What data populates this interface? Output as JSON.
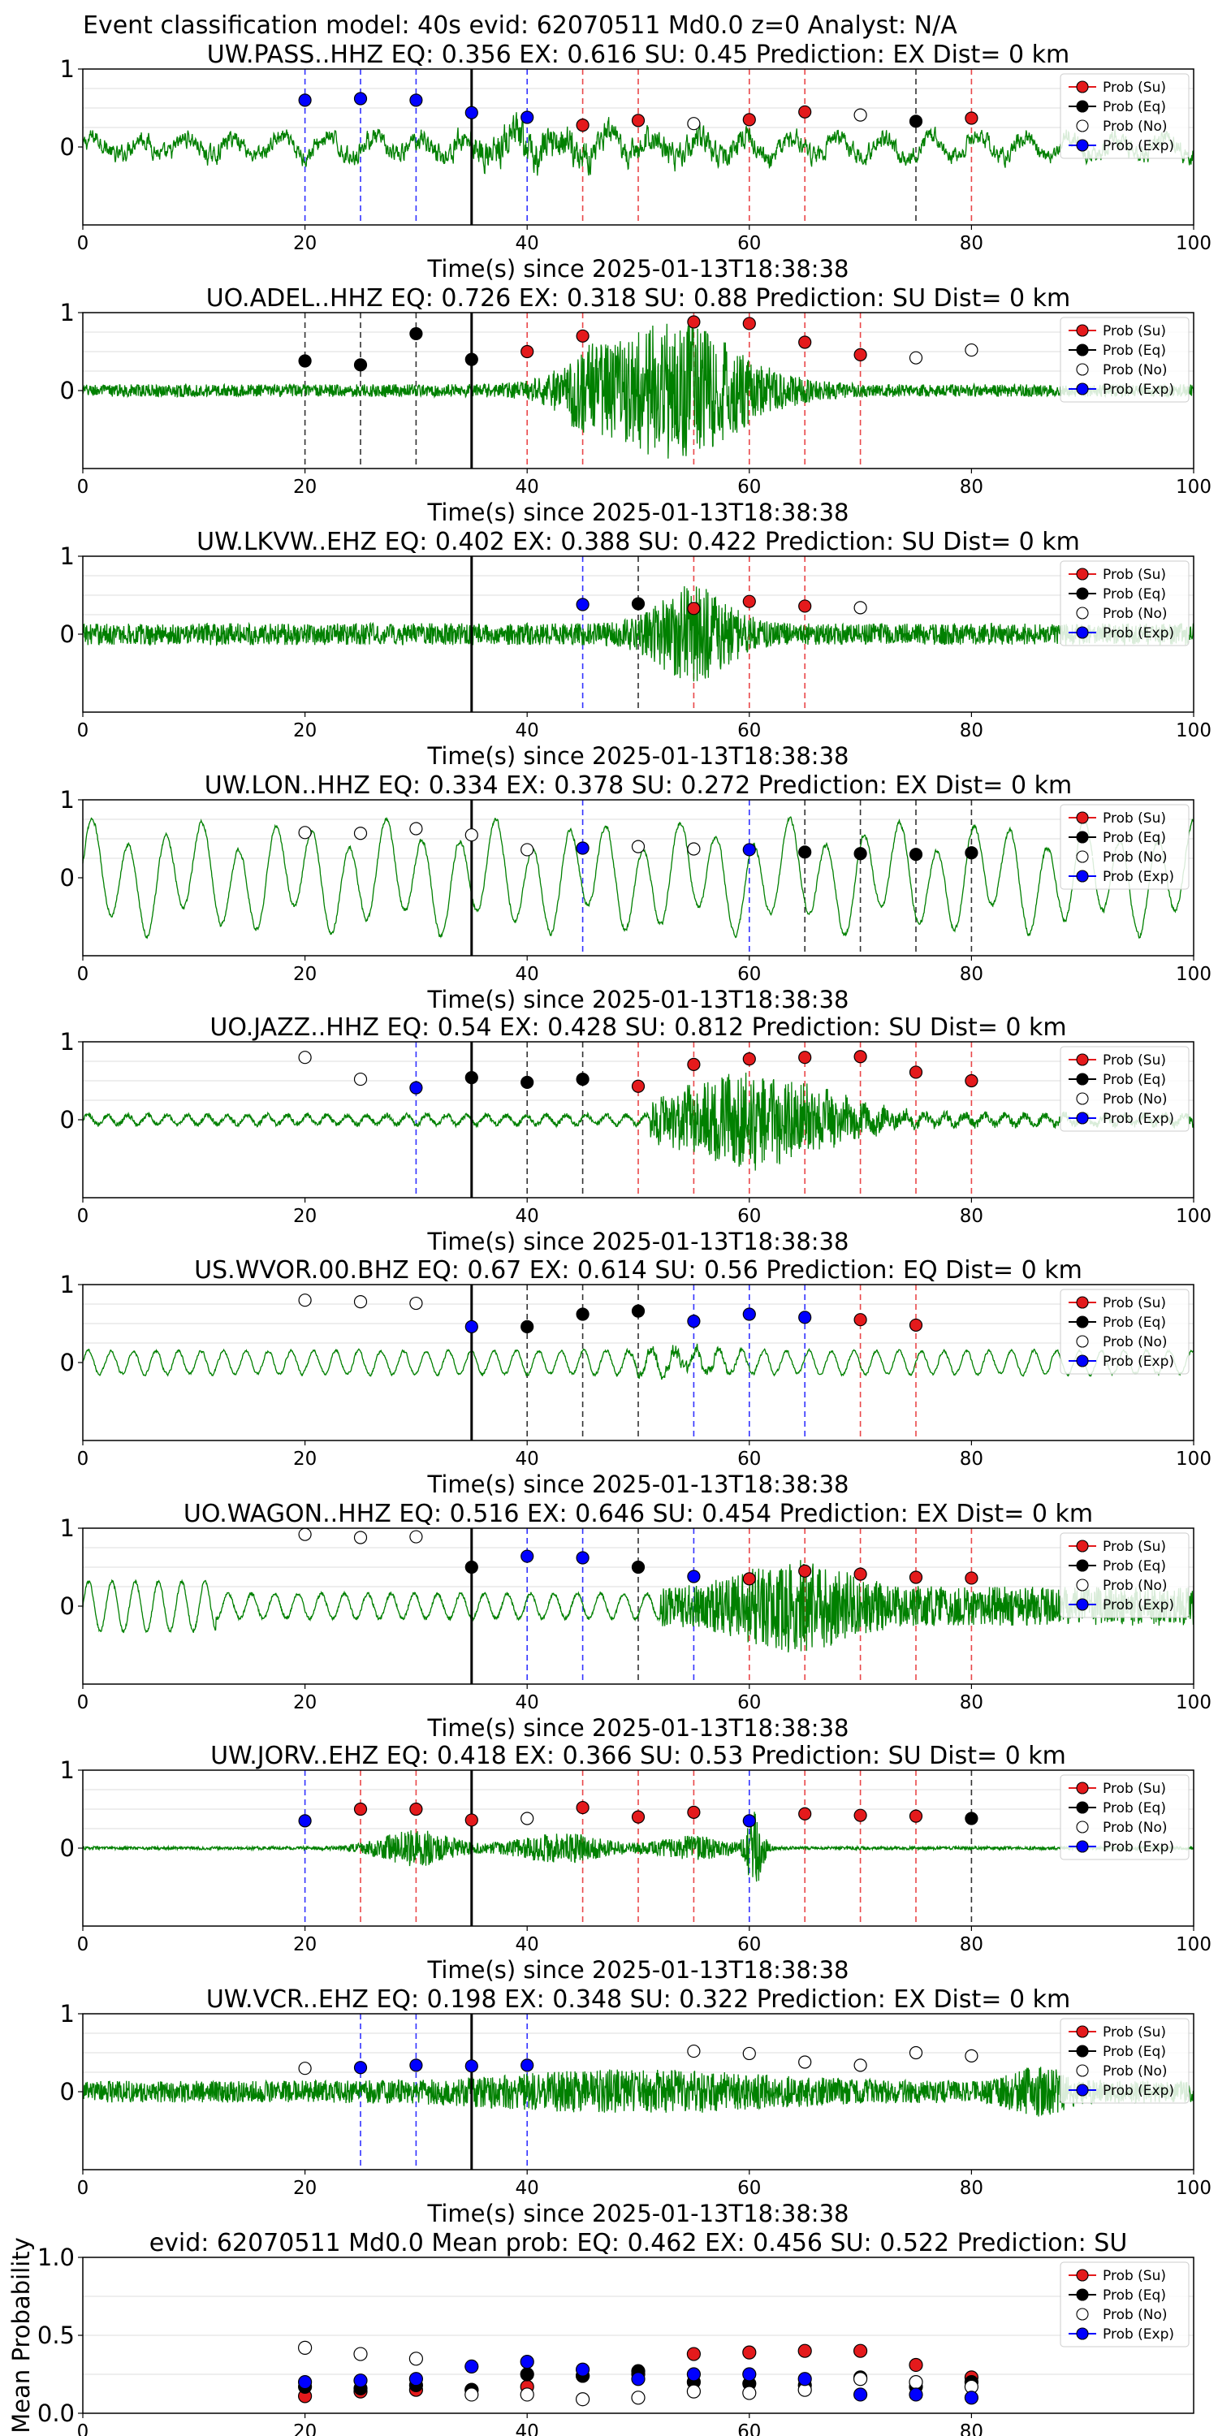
{
  "suptitle": "Event classification model: 40s evid: 62070511 Md0.0 z=0 Analyst: N/A",
  "legend_labels": [
    "Prob (Su)",
    "Prob (Eq)",
    "Prob (No)",
    "Prob (Exp)"
  ],
  "colors": {
    "waveform": "#008000",
    "su": "#e41a1c",
    "eq": "#000000",
    "no": "#ffffff",
    "exp": "#0000ff",
    "origin_line": "#000000"
  },
  "chart_data": [
    {
      "type": "line",
      "title": "UW.PASS..HHZ   EQ: 0.356  EX: 0.616  SU: 0.45   Prediction: EX    Dist= 0 km",
      "xlabel": "Time(s) since 2025-01-13T18:38:38",
      "xlim": [
        0,
        100
      ],
      "ylim": [
        -1,
        1
      ],
      "xticks": [
        "0",
        "20",
        "40",
        "60",
        "80",
        "100"
      ],
      "yticks": [
        "0",
        "1"
      ],
      "origin_time": 35,
      "style": "mixed",
      "points": [
        {
          "t": 20,
          "p": 0.6,
          "cls": "exp"
        },
        {
          "t": 25,
          "p": 0.62,
          "cls": "exp"
        },
        {
          "t": 30,
          "p": 0.6,
          "cls": "exp"
        },
        {
          "t": 35,
          "p": 0.44,
          "cls": "exp"
        },
        {
          "t": 40,
          "p": 0.38,
          "cls": "exp"
        },
        {
          "t": 45,
          "p": 0.28,
          "cls": "su"
        },
        {
          "t": 50,
          "p": 0.34,
          "cls": "su"
        },
        {
          "t": 55,
          "p": 0.3,
          "cls": "no"
        },
        {
          "t": 60,
          "p": 0.35,
          "cls": "su"
        },
        {
          "t": 65,
          "p": 0.45,
          "cls": "su"
        },
        {
          "t": 70,
          "p": 0.41,
          "cls": "no"
        },
        {
          "t": 75,
          "p": 0.33,
          "cls": "eq"
        },
        {
          "t": 80,
          "p": 0.37,
          "cls": "su"
        }
      ]
    },
    {
      "type": "line",
      "title": "UO.ADEL..HHZ   EQ: 0.726  EX: 0.318  SU: 0.88   Prediction: SU    Dist= 0 km",
      "xlabel": "Time(s) since 2025-01-13T18:38:38",
      "xlim": [
        0,
        100
      ],
      "ylim": [
        -1,
        1
      ],
      "xticks": [
        "0",
        "20",
        "40",
        "60",
        "80",
        "100"
      ],
      "yticks": [
        "0",
        "1"
      ],
      "origin_time": 35,
      "style": "burst",
      "points": [
        {
          "t": 20,
          "p": 0.38,
          "cls": "eq"
        },
        {
          "t": 25,
          "p": 0.33,
          "cls": "eq"
        },
        {
          "t": 30,
          "p": 0.73,
          "cls": "eq"
        },
        {
          "t": 35,
          "p": 0.4,
          "cls": "eq"
        },
        {
          "t": 40,
          "p": 0.5,
          "cls": "su"
        },
        {
          "t": 45,
          "p": 0.7,
          "cls": "su"
        },
        {
          "t": 55,
          "p": 0.88,
          "cls": "su"
        },
        {
          "t": 60,
          "p": 0.86,
          "cls": "su"
        },
        {
          "t": 65,
          "p": 0.62,
          "cls": "su"
        },
        {
          "t": 70,
          "p": 0.46,
          "cls": "su"
        },
        {
          "t": 75,
          "p": 0.42,
          "cls": "no"
        },
        {
          "t": 80,
          "p": 0.52,
          "cls": "no"
        }
      ]
    },
    {
      "type": "line",
      "title": "UW.LKVW..EHZ   EQ: 0.402  EX: 0.388  SU: 0.422   Prediction: SU    Dist= 0 km",
      "xlabel": "Time(s) since 2025-01-13T18:38:38",
      "xlim": [
        0,
        100
      ],
      "ylim": [
        -1,
        1
      ],
      "xticks": [
        "0",
        "20",
        "40",
        "60",
        "80",
        "100"
      ],
      "yticks": [
        "0",
        "1"
      ],
      "origin_time": 35,
      "style": "noise",
      "points": [
        {
          "t": 45,
          "p": 0.38,
          "cls": "exp"
        },
        {
          "t": 50,
          "p": 0.39,
          "cls": "eq"
        },
        {
          "t": 55,
          "p": 0.33,
          "cls": "su"
        },
        {
          "t": 60,
          "p": 0.42,
          "cls": "su"
        },
        {
          "t": 65,
          "p": 0.36,
          "cls": "su"
        },
        {
          "t": 70,
          "p": 0.34,
          "cls": "no"
        }
      ]
    },
    {
      "type": "line",
      "title": "UW.LON..HHZ   EQ: 0.334  EX: 0.378  SU: 0.272   Prediction: EX    Dist= 0 km",
      "xlabel": "Time(s) since 2025-01-13T18:38:38",
      "xlim": [
        0,
        100
      ],
      "ylim": [
        -1,
        1
      ],
      "xticks": [
        "0",
        "20",
        "40",
        "60",
        "80",
        "100"
      ],
      "yticks": [
        "0",
        "1"
      ],
      "origin_time": 35,
      "style": "longwave",
      "points": [
        {
          "t": 20,
          "p": 0.58,
          "cls": "no"
        },
        {
          "t": 25,
          "p": 0.57,
          "cls": "no"
        },
        {
          "t": 30,
          "p": 0.63,
          "cls": "no"
        },
        {
          "t": 35,
          "p": 0.55,
          "cls": "no"
        },
        {
          "t": 40,
          "p": 0.36,
          "cls": "no"
        },
        {
          "t": 45,
          "p": 0.38,
          "cls": "exp"
        },
        {
          "t": 50,
          "p": 0.4,
          "cls": "no"
        },
        {
          "t": 55,
          "p": 0.37,
          "cls": "no"
        },
        {
          "t": 60,
          "p": 0.36,
          "cls": "exp"
        },
        {
          "t": 65,
          "p": 0.33,
          "cls": "eq"
        },
        {
          "t": 70,
          "p": 0.31,
          "cls": "eq"
        },
        {
          "t": 75,
          "p": 0.3,
          "cls": "eq"
        },
        {
          "t": 80,
          "p": 0.32,
          "cls": "eq"
        }
      ]
    },
    {
      "type": "line",
      "title": "UO.JAZZ..HHZ   EQ: 0.54  EX: 0.428  SU: 0.812   Prediction: SU    Dist= 0 km",
      "xlabel": "Time(s) since 2025-01-13T18:38:38",
      "xlim": [
        0,
        100
      ],
      "ylim": [
        -1,
        1
      ],
      "xticks": [
        "0",
        "20",
        "40",
        "60",
        "80",
        "100"
      ],
      "yticks": [
        "0",
        "1"
      ],
      "origin_time": 35,
      "style": "quietburst",
      "points": [
        {
          "t": 20,
          "p": 0.8,
          "cls": "no"
        },
        {
          "t": 25,
          "p": 0.52,
          "cls": "no"
        },
        {
          "t": 30,
          "p": 0.41,
          "cls": "exp"
        },
        {
          "t": 35,
          "p": 0.54,
          "cls": "eq"
        },
        {
          "t": 40,
          "p": 0.48,
          "cls": "eq"
        },
        {
          "t": 45,
          "p": 0.52,
          "cls": "eq"
        },
        {
          "t": 50,
          "p": 0.43,
          "cls": "su"
        },
        {
          "t": 55,
          "p": 0.71,
          "cls": "su"
        },
        {
          "t": 60,
          "p": 0.78,
          "cls": "su"
        },
        {
          "t": 65,
          "p": 0.8,
          "cls": "su"
        },
        {
          "t": 70,
          "p": 0.81,
          "cls": "su"
        },
        {
          "t": 75,
          "p": 0.61,
          "cls": "su"
        },
        {
          "t": 80,
          "p": 0.5,
          "cls": "su"
        }
      ]
    },
    {
      "type": "line",
      "title": "US.WVOR.00.BHZ   EQ: 0.67  EX: 0.614  SU: 0.56   Prediction: EQ    Dist= 0 km",
      "xlabel": "Time(s) since 2025-01-13T18:38:38",
      "xlim": [
        0,
        100
      ],
      "ylim": [
        -1,
        1
      ],
      "xticks": [
        "0",
        "20",
        "40",
        "60",
        "80",
        "100"
      ],
      "yticks": [
        "0",
        "1"
      ],
      "origin_time": 35,
      "style": "midwave",
      "points": [
        {
          "t": 20,
          "p": 0.8,
          "cls": "no"
        },
        {
          "t": 25,
          "p": 0.78,
          "cls": "no"
        },
        {
          "t": 30,
          "p": 0.76,
          "cls": "no"
        },
        {
          "t": 35,
          "p": 0.46,
          "cls": "exp"
        },
        {
          "t": 40,
          "p": 0.46,
          "cls": "eq"
        },
        {
          "t": 45,
          "p": 0.62,
          "cls": "eq"
        },
        {
          "t": 50,
          "p": 0.66,
          "cls": "eq"
        },
        {
          "t": 55,
          "p": 0.53,
          "cls": "exp"
        },
        {
          "t": 60,
          "p": 0.62,
          "cls": "exp"
        },
        {
          "t": 65,
          "p": 0.58,
          "cls": "exp"
        },
        {
          "t": 70,
          "p": 0.55,
          "cls": "su"
        },
        {
          "t": 75,
          "p": 0.48,
          "cls": "su"
        }
      ]
    },
    {
      "type": "line",
      "title": "UO.WAGON..HHZ   EQ: 0.516  EX: 0.646  SU: 0.454   Prediction: EX    Dist= 0 km",
      "xlabel": "Time(s) since 2025-01-13T18:38:38",
      "xlim": [
        0,
        100
      ],
      "ylim": [
        -1,
        1
      ],
      "xticks": [
        "0",
        "20",
        "40",
        "60",
        "80",
        "100"
      ],
      "yticks": [
        "0",
        "1"
      ],
      "origin_time": 35,
      "style": "wavethenburst",
      "points": [
        {
          "t": 20,
          "p": 0.92,
          "cls": "no"
        },
        {
          "t": 25,
          "p": 0.88,
          "cls": "no"
        },
        {
          "t": 30,
          "p": 0.89,
          "cls": "no"
        },
        {
          "t": 35,
          "p": 0.5,
          "cls": "eq"
        },
        {
          "t": 40,
          "p": 0.64,
          "cls": "exp"
        },
        {
          "t": 45,
          "p": 0.62,
          "cls": "exp"
        },
        {
          "t": 50,
          "p": 0.5,
          "cls": "eq"
        },
        {
          "t": 55,
          "p": 0.38,
          "cls": "exp"
        },
        {
          "t": 60,
          "p": 0.35,
          "cls": "su"
        },
        {
          "t": 65,
          "p": 0.45,
          "cls": "su"
        },
        {
          "t": 70,
          "p": 0.41,
          "cls": "su"
        },
        {
          "t": 75,
          "p": 0.37,
          "cls": "su"
        },
        {
          "t": 80,
          "p": 0.36,
          "cls": "su"
        }
      ]
    },
    {
      "type": "line",
      "title": "UW.JORV..EHZ   EQ: 0.418  EX: 0.366  SU: 0.53   Prediction: SU    Dist= 0 km",
      "xlabel": "Time(s) since 2025-01-13T18:38:38",
      "xlim": [
        0,
        100
      ],
      "ylim": [
        -1,
        1
      ],
      "xticks": [
        "0",
        "20",
        "40",
        "60",
        "80",
        "100"
      ],
      "yticks": [
        "0",
        "1"
      ],
      "origin_time": 35,
      "style": "flatburst",
      "points": [
        {
          "t": 20,
          "p": 0.35,
          "cls": "exp"
        },
        {
          "t": 25,
          "p": 0.5,
          "cls": "su"
        },
        {
          "t": 30,
          "p": 0.5,
          "cls": "su"
        },
        {
          "t": 35,
          "p": 0.36,
          "cls": "su"
        },
        {
          "t": 40,
          "p": 0.38,
          "cls": "no"
        },
        {
          "t": 45,
          "p": 0.52,
          "cls": "su"
        },
        {
          "t": 50,
          "p": 0.4,
          "cls": "su"
        },
        {
          "t": 55,
          "p": 0.46,
          "cls": "su"
        },
        {
          "t": 60,
          "p": 0.35,
          "cls": "exp"
        },
        {
          "t": 65,
          "p": 0.44,
          "cls": "su"
        },
        {
          "t": 70,
          "p": 0.42,
          "cls": "su"
        },
        {
          "t": 75,
          "p": 0.41,
          "cls": "su"
        },
        {
          "t": 80,
          "p": 0.38,
          "cls": "eq"
        }
      ]
    },
    {
      "type": "line",
      "title": "UW.VCR..EHZ   EQ: 0.198  EX: 0.348  SU: 0.322   Prediction: EX    Dist= 0 km",
      "xlabel": "Time(s) since 2025-01-13T18:38:38",
      "xlim": [
        0,
        100
      ],
      "ylim": [
        -1,
        1
      ],
      "xticks": [
        "0",
        "20",
        "40",
        "60",
        "80",
        "100"
      ],
      "yticks": [
        "0",
        "1"
      ],
      "origin_time": 35,
      "style": "noise2",
      "points": [
        {
          "t": 20,
          "p": 0.3,
          "cls": "no"
        },
        {
          "t": 25,
          "p": 0.31,
          "cls": "exp"
        },
        {
          "t": 30,
          "p": 0.34,
          "cls": "exp"
        },
        {
          "t": 35,
          "p": 0.33,
          "cls": "exp"
        },
        {
          "t": 40,
          "p": 0.34,
          "cls": "exp"
        },
        {
          "t": 55,
          "p": 0.52,
          "cls": "no"
        },
        {
          "t": 60,
          "p": 0.49,
          "cls": "no"
        },
        {
          "t": 65,
          "p": 0.38,
          "cls": "no"
        },
        {
          "t": 70,
          "p": 0.34,
          "cls": "no"
        },
        {
          "t": 75,
          "p": 0.5,
          "cls": "no"
        },
        {
          "t": 80,
          "p": 0.46,
          "cls": "no"
        }
      ]
    },
    {
      "type": "scatter",
      "title": "evid: 62070511  Md0.0   Mean prob:    EQ: 0.462  EX: 0.456  SU: 0.522   Prediction: SU",
      "ylabel": "Mean Probability",
      "xlim": [
        0,
        100
      ],
      "ylim": [
        0,
        1
      ],
      "xticks": [
        "0",
        "20",
        "40",
        "60",
        "80"
      ],
      "yticks": [
        "0.0",
        "0.5",
        "1.0"
      ],
      "x": [
        20,
        25,
        30,
        35,
        40,
        45,
        50,
        55,
        60,
        65,
        70,
        75,
        80
      ],
      "series": [
        {
          "cls": "su",
          "values": [
            0.11,
            0.14,
            0.15,
            0.15,
            0.17,
            0.24,
            0.25,
            0.38,
            0.39,
            0.4,
            0.4,
            0.31,
            0.23
          ]
        },
        {
          "cls": "eq",
          "values": [
            0.17,
            0.16,
            0.18,
            0.15,
            0.25,
            0.24,
            0.27,
            0.2,
            0.19,
            0.18,
            0.23,
            0.17,
            0.2
          ]
        },
        {
          "cls": "no",
          "values": [
            0.42,
            0.38,
            0.35,
            0.12,
            0.12,
            0.09,
            0.1,
            0.14,
            0.13,
            0.15,
            0.22,
            0.2,
            0.17
          ]
        },
        {
          "cls": "exp",
          "values": [
            0.2,
            0.21,
            0.22,
            0.3,
            0.33,
            0.28,
            0.22,
            0.25,
            0.25,
            0.22,
            0.12,
            0.12,
            0.1
          ]
        }
      ]
    }
  ]
}
